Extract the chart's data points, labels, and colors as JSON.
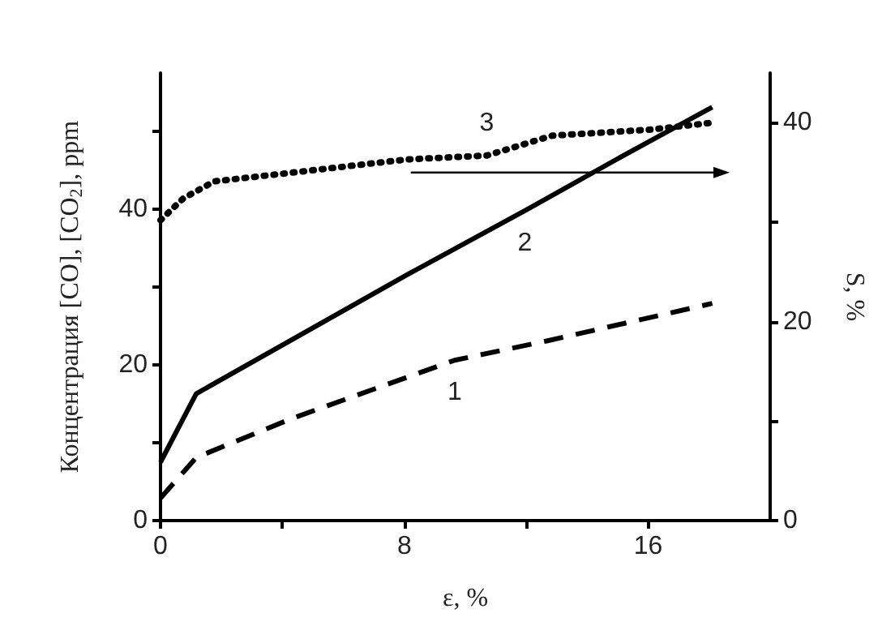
{
  "chart_data": {
    "type": "line",
    "xlabel": "ε, %",
    "ylabel": "Концентрация [CO], [CO$_{2}$], ppm",
    "y2label": "S, %",
    "xlim": [
      0,
      20
    ],
    "xticks": [
      0,
      {
        "value": 4,
        "label": null
      },
      8,
      {
        "value": 12,
        "label": null
      },
      16
    ],
    "ylim": [
      0,
      57.5
    ],
    "yticks": [
      0,
      {
        "value": 10,
        "label": null
      },
      20,
      {
        "value": 30,
        "label": null
      },
      40,
      {
        "value": 50,
        "label": null
      }
    ],
    "y2lim": [
      0,
      45
    ],
    "y2ticks": [
      0,
      {
        "value": 10,
        "label": null
      },
      20,
      {
        "value": 30,
        "label": null
      },
      40
    ],
    "grid": false,
    "legend": false,
    "marker": "none",
    "series": [
      {
        "name": "1",
        "color": "#000000",
        "line_style": "dashed",
        "x": [
          0,
          1.17,
          4.3,
          9.65,
          12.7,
          18.1
        ],
        "values": [
          2.9,
          8.1,
          13.1,
          20.6,
          23.1,
          27.9
        ]
      },
      {
        "name": "2",
        "color": "#000000",
        "line_style": "solid",
        "x": [
          0,
          1.17,
          8.05,
          11.95,
          15.1,
          18.1
        ],
        "values": [
          7.5,
          16.3,
          31.5,
          39.8,
          46.7,
          53.1
        ]
      },
      {
        "name": "3",
        "color": "#000000",
        "line_style": "dotted",
        "axis": "y2",
        "x": [
          0,
          0.75,
          1.76,
          3.8,
          8.05,
          10.7,
          12.85,
          16.05,
          18.1
        ],
        "values": [
          30.2,
          32.4,
          34.1,
          34.8,
          36.3,
          36.7,
          38.7,
          39.3,
          40
        ]
      }
    ]
  }
}
